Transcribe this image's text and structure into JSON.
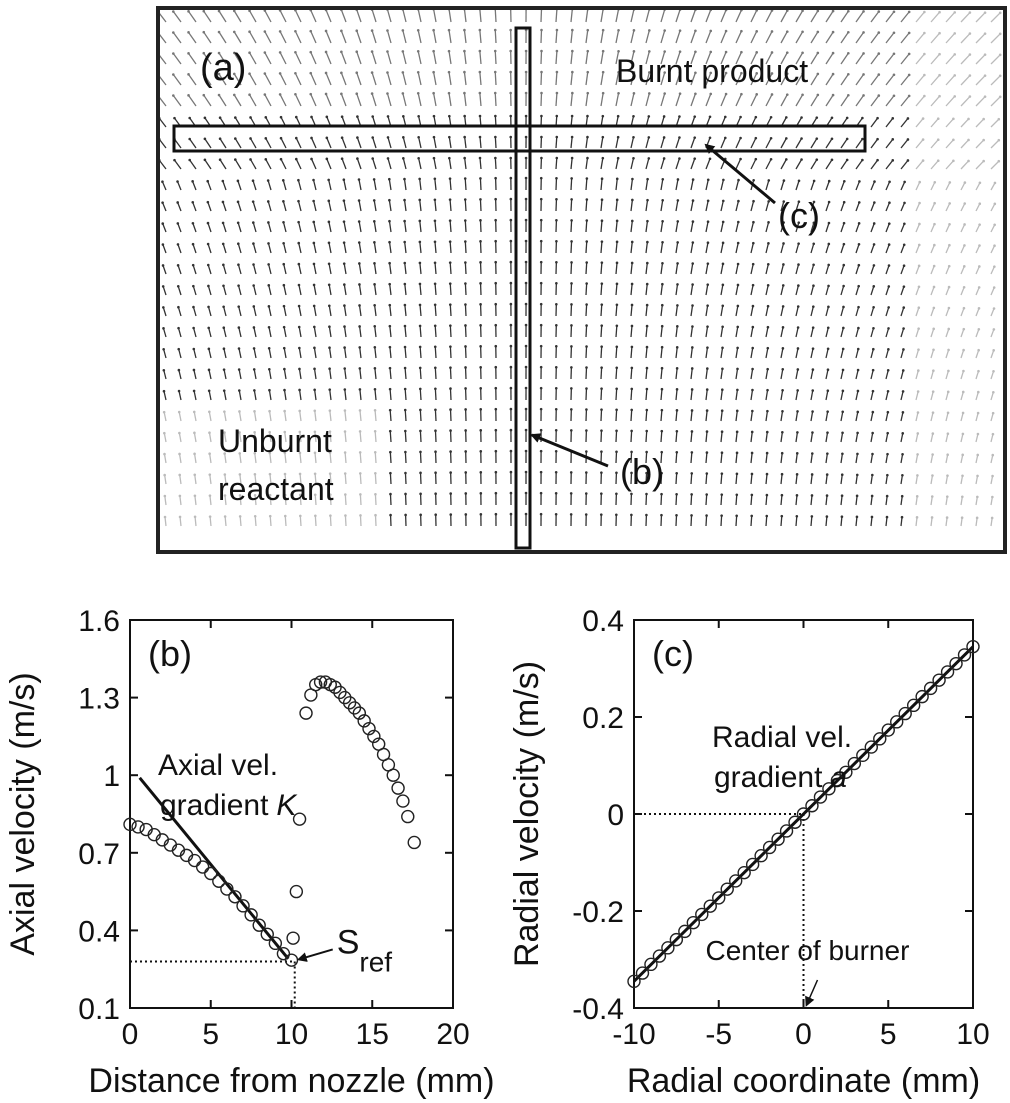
{
  "figure_a": {
    "panel_label": "(a)",
    "top_label": "Burnt product",
    "bottom_label": [
      "Unburnt",
      "reactant"
    ],
    "callout_b": "(b)",
    "callout_c": "(c)"
  },
  "chart_data": [
    {
      "type": "scatter",
      "panel_label": "(b)",
      "x_label": "Distance from nozzle (mm)",
      "y_label": "Axial velocity (m/s)",
      "xlim": [
        0,
        20
      ],
      "xticks": [
        0,
        5,
        10,
        15,
        20
      ],
      "ylim": [
        0.1,
        1.6
      ],
      "yticks": [
        0.1,
        0.4,
        0.7,
        1,
        1.3,
        1.6
      ],
      "x": [
        0,
        0.5,
        1,
        1.5,
        2,
        2.5,
        3,
        3.5,
        4,
        4.5,
        5,
        5.5,
        6,
        6.5,
        7,
        7.5,
        8,
        8.5,
        9,
        9.5,
        10,
        10.1,
        10.3,
        10.5,
        10.9,
        11.2,
        11.5,
        11.8,
        12.1,
        12.4,
        12.7,
        13,
        13.3,
        13.6,
        13.9,
        14.2,
        14.5,
        14.8,
        15.1,
        15.4,
        15.7,
        16,
        16.3,
        16.6,
        16.9,
        17.2,
        17.6
      ],
      "values": [
        0.81,
        0.8,
        0.79,
        0.77,
        0.75,
        0.73,
        0.71,
        0.69,
        0.67,
        0.645,
        0.62,
        0.59,
        0.56,
        0.53,
        0.495,
        0.46,
        0.42,
        0.385,
        0.35,
        0.31,
        0.285,
        0.37,
        0.55,
        0.83,
        1.24,
        1.31,
        1.35,
        1.36,
        1.36,
        1.35,
        1.34,
        1.32,
        1.3,
        1.28,
        1.26,
        1.24,
        1.21,
        1.18,
        1.15,
        1.12,
        1.08,
        1.04,
        1.0,
        0.95,
        0.9,
        0.84,
        0.74
      ],
      "fit": {
        "x": [
          0.6,
          9.8
        ],
        "values": [
          0.99,
          0.29
        ]
      },
      "reference": {
        "x": 10.2,
        "y": 0.28
      },
      "annotation": [
        "Axial vel.",
        "gradient"
      ],
      "annotation_symbol": "K",
      "ref_label": "S",
      "ref_subscript": "ref"
    },
    {
      "type": "scatter",
      "panel_label": "(c)",
      "x_label": "Radial coordinate (mm)",
      "y_label": "Radial velocity (m/s)",
      "xlim": [
        -10,
        10
      ],
      "xticks": [
        -10,
        -5,
        0,
        5,
        10
      ],
      "ylim": [
        -0.4,
        0.4
      ],
      "yticks": [
        -0.4,
        -0.2,
        0,
        0.2,
        0.4
      ],
      "x": [
        -10,
        -9.5,
        -9,
        -8.5,
        -8,
        -7.5,
        -7,
        -6.5,
        -6,
        -5.5,
        -5,
        -4.5,
        -4,
        -3.5,
        -3,
        -2.5,
        -2,
        -1.5,
        -1,
        -0.5,
        0,
        0.5,
        1,
        1.5,
        2,
        2.5,
        3,
        3.5,
        4,
        4.5,
        5,
        5.5,
        6,
        6.5,
        7,
        7.5,
        8,
        8.5,
        9,
        9.5,
        10
      ],
      "values": [
        -0.345,
        -0.328,
        -0.31,
        -0.293,
        -0.276,
        -0.259,
        -0.242,
        -0.224,
        -0.207,
        -0.19,
        -0.173,
        -0.155,
        -0.138,
        -0.121,
        -0.104,
        -0.086,
        -0.069,
        -0.052,
        -0.035,
        -0.017,
        0,
        0.017,
        0.035,
        0.052,
        0.069,
        0.086,
        0.104,
        0.121,
        0.138,
        0.155,
        0.173,
        0.19,
        0.207,
        0.224,
        0.242,
        0.259,
        0.276,
        0.293,
        0.31,
        0.328,
        0.345
      ],
      "fit": {
        "x": [
          -10,
          10
        ],
        "values": [
          -0.345,
          0.345
        ]
      },
      "reference": {
        "x": 0,
        "y": 0
      },
      "annotation": [
        "Radial vel.",
        "gradient"
      ],
      "annotation_symbol": "a",
      "ref_label": "Center of burner"
    }
  ]
}
